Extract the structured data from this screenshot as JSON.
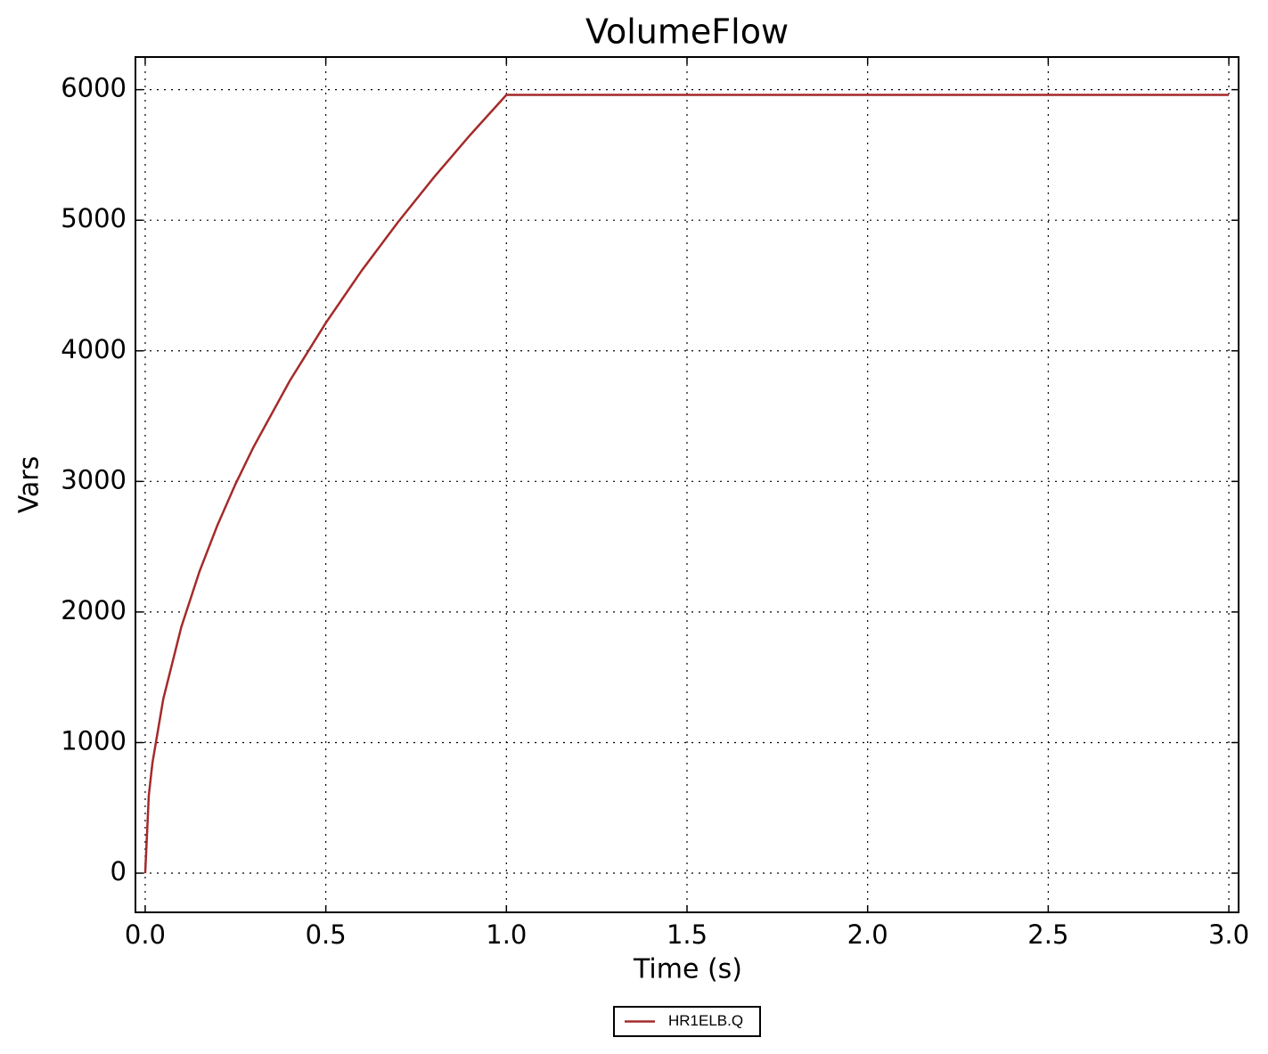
{
  "chart_data": {
    "type": "line",
    "title": "VolumeFlow",
    "xlabel": "Time (s)",
    "ylabel": "Vars",
    "x": [
      0,
      0.01,
      0.02,
      0.05,
      0.1,
      0.15,
      0.2,
      0.25,
      0.3,
      0.4,
      0.5,
      0.6,
      0.7,
      0.8,
      0.9,
      1.0,
      3.0
    ],
    "series": [
      {
        "name": "HR1ELB.Q",
        "color": "#a52a2a",
        "values": [
          0,
          596,
          843,
          1333,
          1885,
          2308,
          2665,
          2980,
          3264,
          3769,
          4214,
          4617,
          4986,
          5331,
          5654,
          5960,
          5960
        ]
      }
    ],
    "xlim": [
      -0.027,
      3.027
    ],
    "ylim": [
      -300,
      6250
    ],
    "xticks": [
      {
        "value": 0,
        "label": "0.0"
      },
      0.5,
      {
        "value": 1,
        "label": "1.0"
      },
      1.5,
      {
        "value": 2,
        "label": "2.0"
      },
      2.5,
      {
        "value": 3,
        "label": "3.0"
      }
    ],
    "yticks": [
      0,
      1000,
      2000,
      3000,
      4000,
      5000,
      6000
    ],
    "grid": true,
    "legend": "below"
  }
}
